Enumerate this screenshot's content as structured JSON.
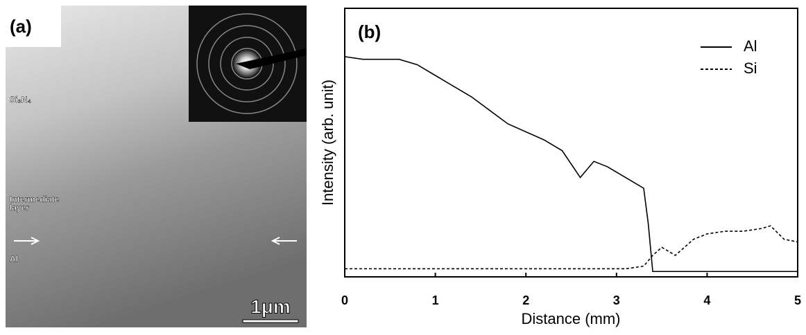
{
  "panel_a": {
    "label": "(a)",
    "labels": [
      "Si₃N₄",
      "Intermediate",
      "layer",
      "Al"
    ],
    "scale_bar": "1μm"
  },
  "chart_data": {
    "type": "line",
    "title": "(b)",
    "x_label": "Distance (mm)",
    "y_label": "Intensity (arb. unit)",
    "x": [
      0,
      0.2,
      0.4,
      0.6,
      0.8,
      1,
      1.2,
      1.4,
      1.6,
      1.8,
      2,
      2.2,
      2.4,
      2.6,
      2.75,
      2.9,
      3.1,
      3.3,
      3.35,
      3.4,
      3.5,
      3.65,
      3.85,
      4,
      4.2,
      4.4,
      4.6,
      4.7,
      4.85,
      5
    ],
    "series": [
      {
        "name": "Al",
        "color": "#000000",
        "dash": false,
        "values": [
          82,
          81,
          81,
          81,
          79,
          75,
          71,
          67,
          62,
          57,
          54,
          51,
          47,
          37,
          43,
          41,
          37,
          33,
          20,
          2,
          2,
          2,
          2,
          2,
          2,
          2,
          2,
          2,
          2,
          2
        ]
      },
      {
        "name": "Si",
        "color": "#000000",
        "dash": true,
        "values": [
          3,
          3,
          3,
          3,
          3,
          3,
          3,
          3,
          3,
          3,
          3,
          3,
          3,
          3,
          3,
          3,
          3,
          4,
          6,
          8,
          11,
          8,
          14,
          16,
          17,
          17,
          18,
          19,
          14,
          13
        ]
      }
    ],
    "xlim": [
      0,
      5
    ],
    "xticks": [
      0,
      1,
      2,
      3,
      4,
      5
    ],
    "ylim": [
      0,
      100
    ],
    "legend": "upper right"
  }
}
